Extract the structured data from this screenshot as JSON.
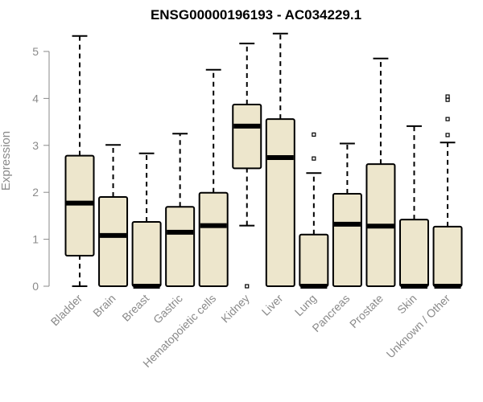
{
  "chart_data": {
    "type": "boxplot",
    "title": "ENSG00000196193 - AC034229.1",
    "ylabel": "Expression",
    "xlabel": "",
    "ylim": [
      0,
      5.5
    ],
    "yticks": [
      0,
      1,
      2,
      3,
      4,
      5
    ],
    "grid": false,
    "box_fill": "#ede6cc",
    "box_stroke": "#000000",
    "categories": [
      "Bladder",
      "Brain",
      "Breast",
      "Gastric",
      "Hematopoietic cells",
      "Kidney",
      "Liver",
      "Lung",
      "Pancreas",
      "Prostate",
      "Skin",
      "Unknown / Other"
    ],
    "boxes": [
      {
        "whisker_low": 0,
        "q1": 0.65,
        "median": 1.77,
        "q3": 2.78,
        "whisker_high": 5.33,
        "outliers": []
      },
      {
        "whisker_low": 0,
        "q1": 0,
        "median": 1.08,
        "q3": 1.9,
        "whisker_high": 3.01,
        "outliers": []
      },
      {
        "whisker_low": 0,
        "q1": 0,
        "median": 0,
        "q3": 1.37,
        "whisker_high": 2.83,
        "outliers": []
      },
      {
        "whisker_low": 0,
        "q1": 0,
        "median": 1.15,
        "q3": 1.69,
        "whisker_high": 3.25,
        "outliers": []
      },
      {
        "whisker_low": 0,
        "q1": 0,
        "median": 1.29,
        "q3": 1.99,
        "whisker_high": 4.61,
        "outliers": []
      },
      {
        "whisker_low": 1.29,
        "q1": 2.51,
        "median": 3.41,
        "q3": 3.87,
        "whisker_high": 5.17,
        "outliers": [
          0
        ]
      },
      {
        "whisker_low": 0,
        "q1": 0,
        "median": 2.74,
        "q3": 3.56,
        "whisker_high": 5.38,
        "outliers": []
      },
      {
        "whisker_low": 0,
        "q1": 0,
        "median": 0,
        "q3": 1.1,
        "whisker_high": 2.41,
        "outliers": [
          2.72,
          3.23
        ]
      },
      {
        "whisker_low": 0,
        "q1": 0,
        "median": 1.32,
        "q3": 1.97,
        "whisker_high": 3.04,
        "outliers": []
      },
      {
        "whisker_low": 0,
        "q1": 0,
        "median": 1.28,
        "q3": 2.6,
        "whisker_high": 4.85,
        "outliers": []
      },
      {
        "whisker_low": 0,
        "q1": 0,
        "median": 0,
        "q3": 1.42,
        "whisker_high": 3.41,
        "outliers": []
      },
      {
        "whisker_low": 0,
        "q1": 0,
        "median": 0,
        "q3": 1.27,
        "whisker_high": 3.06,
        "outliers": [
          3.22,
          3.56,
          3.97,
          4.04
        ]
      }
    ]
  }
}
